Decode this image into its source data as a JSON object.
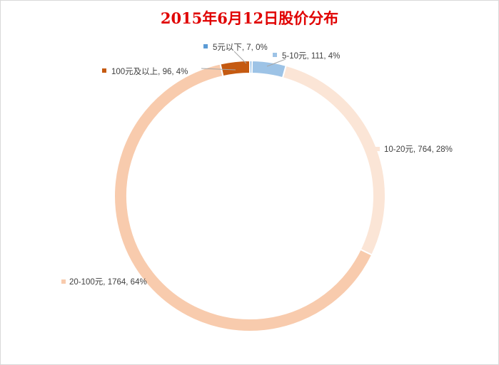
{
  "chart_data": {
    "type": "pie",
    "variant": "doughnut",
    "title": "2015年6月12日股价分布",
    "categories": [
      "5元以下",
      "5-10元",
      "10-20元",
      "20-100元",
      "100元及以上"
    ],
    "values": [
      7,
      111,
      764,
      1764,
      96
    ],
    "percent_labels": [
      "0%",
      "4%",
      "28%",
      "64%",
      "4%"
    ],
    "labels": [
      "5元以下, 7, 0%",
      "5-10元, 111, 4%",
      "10-20元, 764, 28%",
      "20-100元, 1764, 64%",
      "100元及以上, 96, 4%"
    ],
    "colors": [
      "#5b9bd5",
      "#9dc3e6",
      "#fbe5d6",
      "#f8cbad",
      "#c55a11"
    ],
    "legend": "none",
    "start_angle_deg": 0,
    "direction": "clockwise"
  }
}
